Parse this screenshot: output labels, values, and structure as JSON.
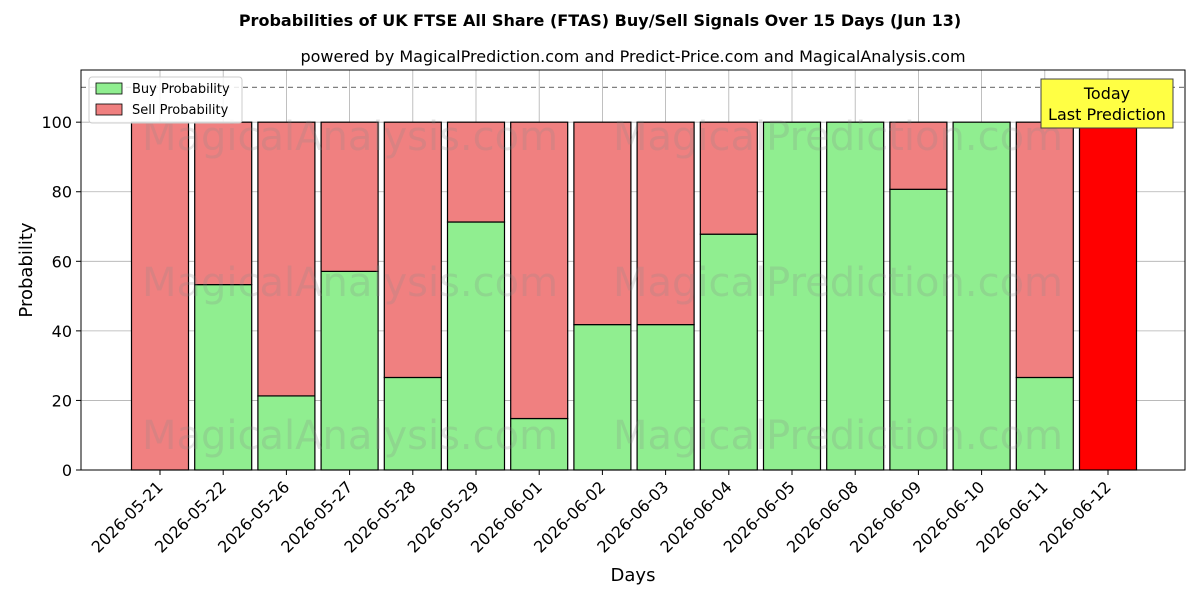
{
  "title": "Probabilities of UK FTSE All Share (FTAS) Buy/Sell Signals Over 15 Days (Jun 13)",
  "subtitle": "powered by MagicalPrediction.com and Predict-Price.com and MagicalAnalysis.com",
  "watermarks": [
    "MagicalAnalysis.com",
    "MagicalPrediction.com"
  ],
  "annotation": {
    "line1": "Today",
    "line2": "Last Prediction"
  },
  "colors": {
    "buy": "#90ee90",
    "sell": "#f08080",
    "today": "#ff0000",
    "annotation_bg": "#ffff44",
    "threshold_line": "#808080"
  },
  "chart_data": {
    "type": "bar",
    "stacked": true,
    "xlabel": "Days",
    "ylabel": "Probability",
    "ylim": [
      0,
      115
    ],
    "yticks": [
      0,
      20,
      40,
      60,
      80,
      100
    ],
    "threshold": 110,
    "grid": true,
    "legend_position": "top-left",
    "categories": [
      "2026-05-21",
      "2026-05-22",
      "2026-05-26",
      "2026-05-27",
      "2026-05-28",
      "2026-05-29",
      "2026-06-01",
      "2026-06-02",
      "2026-06-03",
      "2026-06-04",
      "2026-06-05",
      "2026-06-08",
      "2026-06-09",
      "2026-06-10",
      "2026-06-11",
      "2026-06-12"
    ],
    "series": [
      {
        "name": "Buy Probability",
        "values": [
          0,
          53.3,
          21.3,
          57.1,
          26.6,
          71.3,
          14.8,
          41.8,
          41.8,
          67.8,
          100,
          100,
          80.7,
          100,
          26.6,
          0
        ]
      },
      {
        "name": "Sell Probability",
        "values": [
          100,
          46.7,
          78.7,
          42.9,
          73.4,
          28.7,
          85.2,
          58.2,
          58.2,
          32.2,
          0,
          0,
          19.3,
          0,
          73.4,
          100
        ]
      }
    ],
    "today_index": 15
  }
}
